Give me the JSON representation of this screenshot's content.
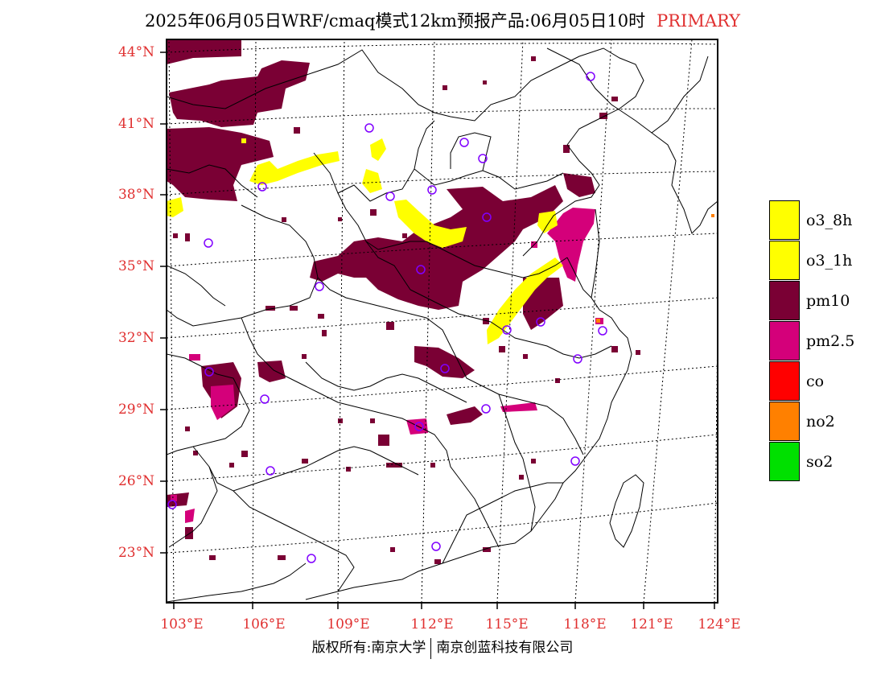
{
  "title": {
    "main": "2025年06月05日WRF/cmaq模式12km预报产品:06月05日10时",
    "tag": "PRIMARY"
  },
  "lat_labels": [
    "44°N",
    "41°N",
    "38°N",
    "35°N",
    "32°N",
    "29°N",
    "26°N",
    "23°N"
  ],
  "lon_labels": [
    "103°E",
    "106°E",
    "109°E",
    "112°E",
    "115°E",
    "118°E",
    "121°E",
    "124°E"
  ],
  "legend": {
    "items": [
      {
        "label": "o3_8h",
        "color": "#ffff00"
      },
      {
        "label": "o3_1h",
        "color": "#ffff00"
      },
      {
        "label": "pm10",
        "color": "#7a0034"
      },
      {
        "label": "pm2.5",
        "color": "#d4007a"
      },
      {
        "label": "co",
        "color": "#ff0000"
      },
      {
        "label": "no2",
        "color": "#ff8000"
      },
      {
        "label": "so2",
        "color": "#00e000"
      }
    ]
  },
  "footer": {
    "left": "版权所有:南京大学",
    "right": "南京创蓝科技有限公司"
  },
  "colors": {
    "label_red": "#e03030",
    "pm10": "#7a0034",
    "pm25": "#d4007a",
    "o3": "#ffff00",
    "station": "#8000ff"
  }
}
